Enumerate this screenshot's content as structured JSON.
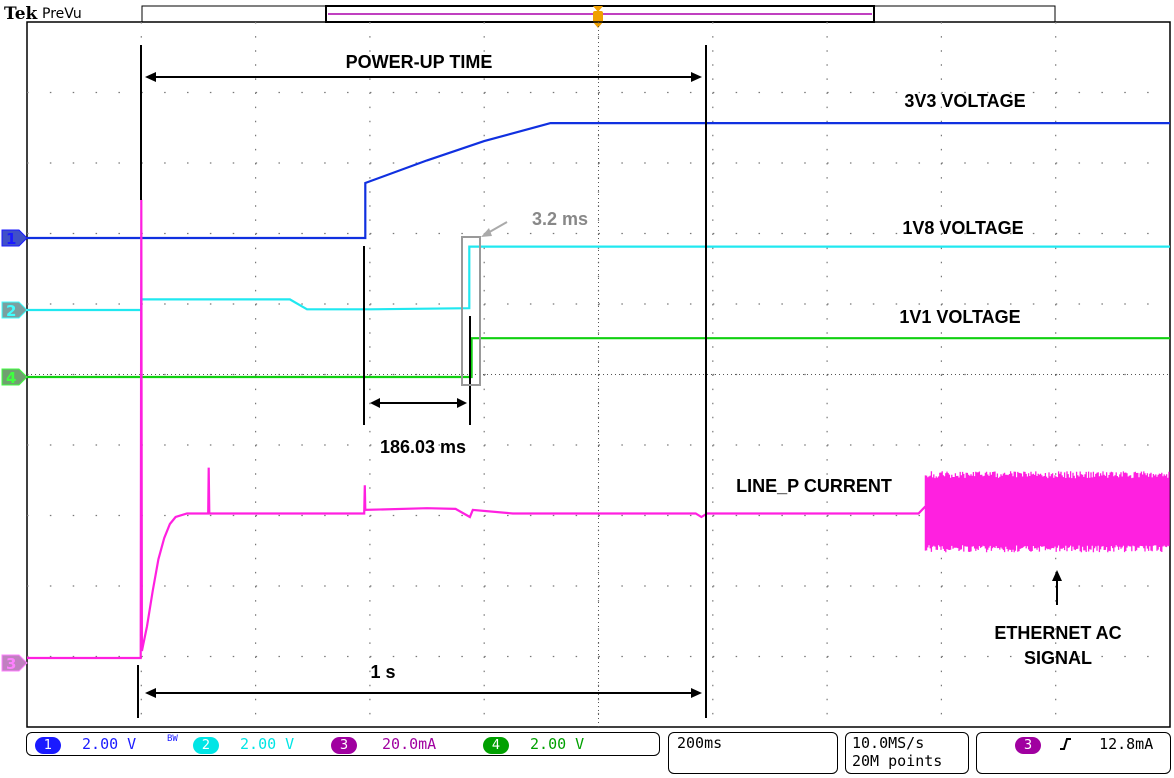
{
  "header": {
    "brand": "Tek",
    "mode": "PreVu"
  },
  "status_bar": {
    "channels": [
      {
        "id": "1",
        "scale": "2.00 V",
        "color": "#1a1aff"
      },
      {
        "id": "2",
        "scale": "2.00 V",
        "color": "#00e5e5",
        "bw_flag": "BW"
      },
      {
        "id": "3",
        "scale": "20.0mA",
        "color": "#a000a0"
      },
      {
        "id": "4",
        "scale": "2.00 V",
        "color": "#00a000"
      }
    ],
    "timebase": "200ms",
    "sample_rate": "10.0MS/s",
    "record_length": "20M points",
    "trigger": {
      "source": "3",
      "slope": "rising-edge-icon",
      "level": "12.8mA"
    }
  },
  "chart_data": {
    "type": "line",
    "xlabel": "",
    "ylabel": "",
    "xlim_ms": [
      -1000,
      1000
    ],
    "x_divisions": 10,
    "y_divisions": 10,
    "grid": true,
    "series": [
      {
        "channel": "1",
        "name": "3V3 VOLTAGE",
        "unit": "V",
        "volts_per_div": 2,
        "color": "#1030e0",
        "points": [
          [
            -1000,
            0
          ],
          [
            -408,
            0
          ],
          [
            -408,
            1.56
          ],
          [
            -300,
            2.2
          ],
          [
            -200,
            2.75
          ],
          [
            -120,
            3.1
          ],
          [
            -84,
            3.26
          ],
          [
            1000,
            3.26
          ]
        ]
      },
      {
        "channel": "2",
        "name": "1V8 VOLTAGE",
        "unit": "V",
        "volts_per_div": 2,
        "color": "#20e8f0",
        "points": [
          [
            -1000,
            0
          ],
          [
            -800,
            0
          ],
          [
            -800,
            0.3
          ],
          [
            -540,
            0.3
          ],
          [
            -510,
            0.02
          ],
          [
            -400,
            0.02
          ],
          [
            -226,
            0.05
          ],
          [
            -226,
            1.8
          ],
          [
            1000,
            1.8
          ]
        ]
      },
      {
        "channel": "4",
        "name": "1V1 VOLTAGE",
        "unit": "V",
        "volts_per_div": 2,
        "color": "#10d010",
        "points": [
          [
            -1000,
            0
          ],
          [
            -222,
            0
          ],
          [
            -222,
            1.1
          ],
          [
            1000,
            1.1
          ]
        ]
      },
      {
        "channel": "3",
        "name": "LINE_P CURRENT",
        "unit": "mA",
        "ma_per_div": 20,
        "color": "#ff20e0",
        "points": [
          [
            -1000,
            0
          ],
          [
            -801,
            0
          ],
          [
            -800,
            130
          ],
          [
            -799,
            2
          ],
          [
            -790,
            9
          ],
          [
            -780,
            19
          ],
          [
            -770,
            28
          ],
          [
            -760,
            34
          ],
          [
            -750,
            38
          ],
          [
            -740,
            40
          ],
          [
            -720,
            41
          ],
          [
            -683,
            41
          ],
          [
            -682,
            54
          ],
          [
            -681,
            41
          ],
          [
            -410,
            41
          ],
          [
            -409,
            49
          ],
          [
            -408,
            42
          ],
          [
            -300,
            42.5
          ],
          [
            -250,
            42.3
          ],
          [
            -225,
            40
          ],
          [
            -220,
            42
          ],
          [
            -150,
            41
          ],
          [
            -40,
            41
          ],
          [
            170,
            41
          ],
          [
            180,
            40
          ],
          [
            190,
            41
          ],
          [
            560,
            41
          ],
          [
            572,
            43
          ]
        ],
        "noise_band_ms": [
          572,
          1000
        ],
        "noise_band_ma": [
          30,
          53
        ]
      }
    ],
    "annotations": {
      "power_up_time": "POWER-UP TIME",
      "label_3v3": "3V3 VOLTAGE",
      "label_1v8": "1V8 VOLTAGE",
      "label_1v1": "1V1 VOLTAGE",
      "delay_1v8": "3.2 ms",
      "delay_3v3_to_1v8": "186.03 ms",
      "label_current": "LINE_P CURRENT",
      "ethernet_line1": "ETHERNET AC",
      "ethernet_line2": "SIGNAL",
      "one_second": "1 s"
    }
  }
}
